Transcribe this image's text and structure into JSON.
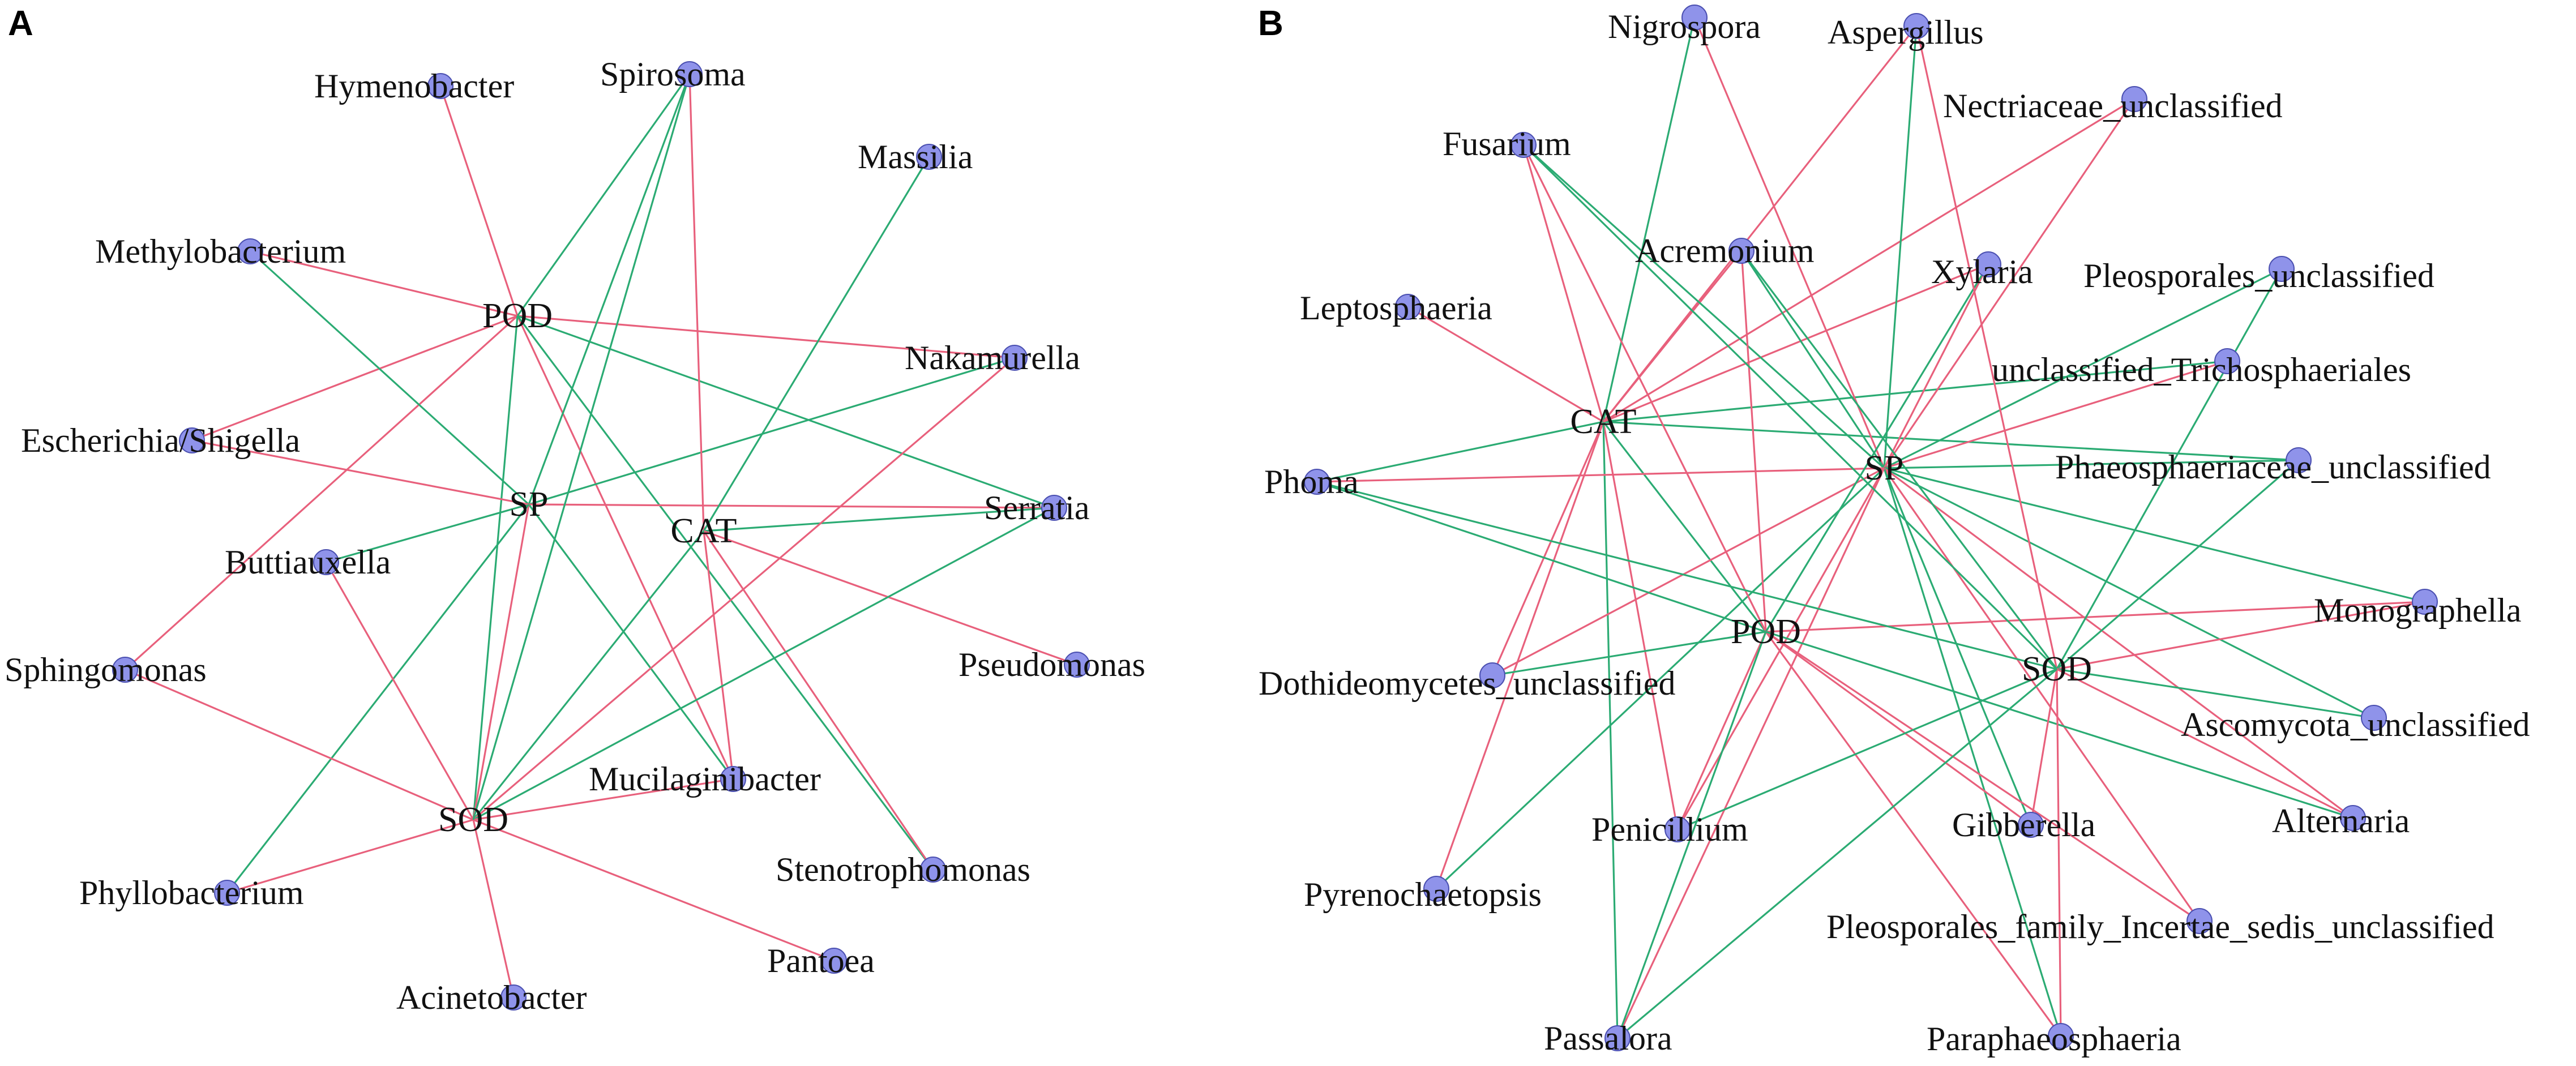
{
  "colors": {
    "positive_edge": "#e8607c",
    "negative_edge": "#2bab73",
    "node_fill": "#8f93ea",
    "node_stroke": "#4a4fb0",
    "text": "#111111"
  },
  "panels": [
    {
      "letter": "A",
      "hubs": [
        "POD",
        "SP",
        "CAT",
        "SOD"
      ],
      "nodes": [
        "Hymenobacter",
        "Spirosoma",
        "Massilia",
        "Methylobacterium",
        "Nakamurella",
        "Escherichia/Shigella",
        "Serratia",
        "Buttiauxella",
        "Pseudomonas",
        "Sphingomonas",
        "Mucilaginibacter",
        "Stenotrophomonas",
        "Phyllobacterium",
        "Pantoea",
        "Acinetobacter"
      ],
      "edges": [
        {
          "from": "POD",
          "to": "Hymenobacter",
          "sign": "positive"
        },
        {
          "from": "POD",
          "to": "Methylobacterium",
          "sign": "positive"
        },
        {
          "from": "POD",
          "to": "Nakamurella",
          "sign": "positive"
        },
        {
          "from": "POD",
          "to": "Serratia",
          "sign": "negative"
        },
        {
          "from": "POD",
          "to": "Spirosoma",
          "sign": "negative"
        },
        {
          "from": "POD",
          "to": "Mucilaginibacter",
          "sign": "positive"
        },
        {
          "from": "POD",
          "to": "Escherichia/Shigella",
          "sign": "positive"
        },
        {
          "from": "POD",
          "to": "Sphingomonas",
          "sign": "positive"
        },
        {
          "from": "POD",
          "to": "Stenotrophomonas",
          "sign": "negative"
        },
        {
          "from": "POD",
          "to": "SOD",
          "sign": "negative"
        },
        {
          "from": "SP",
          "to": "Spirosoma",
          "sign": "negative"
        },
        {
          "from": "SP",
          "to": "Methylobacterium",
          "sign": "negative"
        },
        {
          "from": "SP",
          "to": "Nakamurella",
          "sign": "negative"
        },
        {
          "from": "SP",
          "to": "Buttiauxella",
          "sign": "negative"
        },
        {
          "from": "SP",
          "to": "Escherichia/Shigella",
          "sign": "positive"
        },
        {
          "from": "SP",
          "to": "Serratia",
          "sign": "positive"
        },
        {
          "from": "SP",
          "to": "Mucilaginibacter",
          "sign": "negative"
        },
        {
          "from": "SP",
          "to": "SOD",
          "sign": "positive"
        },
        {
          "from": "SP",
          "to": "Phyllobacterium",
          "sign": "negative"
        },
        {
          "from": "CAT",
          "to": "Spirosoma",
          "sign": "positive"
        },
        {
          "from": "CAT",
          "to": "Massilia",
          "sign": "negative"
        },
        {
          "from": "CAT",
          "to": "Serratia",
          "sign": "negative"
        },
        {
          "from": "CAT",
          "to": "Pseudomonas",
          "sign": "positive"
        },
        {
          "from": "CAT",
          "to": "Mucilaginibacter",
          "sign": "positive"
        },
        {
          "from": "CAT",
          "to": "Stenotrophomonas",
          "sign": "positive"
        },
        {
          "from": "CAT",
          "to": "SOD",
          "sign": "negative"
        },
        {
          "from": "SOD",
          "to": "Nakamurella",
          "sign": "positive"
        },
        {
          "from": "SOD",
          "to": "Serratia",
          "sign": "negative"
        },
        {
          "from": "SOD",
          "to": "Buttiauxella",
          "sign": "positive"
        },
        {
          "from": "SOD",
          "to": "Sphingomonas",
          "sign": "positive"
        },
        {
          "from": "SOD",
          "to": "Phyllobacterium",
          "sign": "positive"
        },
        {
          "from": "SOD",
          "to": "Pantoea",
          "sign": "positive"
        },
        {
          "from": "SOD",
          "to": "Acinetobacter",
          "sign": "positive"
        },
        {
          "from": "SOD",
          "to": "Mucilaginibacter",
          "sign": "positive"
        },
        {
          "from": "SOD",
          "to": "Spirosoma",
          "sign": "negative"
        }
      ]
    },
    {
      "letter": "B",
      "hubs": [
        "CAT",
        "SP",
        "POD",
        "SOD"
      ],
      "nodes": [
        "Nigrospora",
        "Aspergillus",
        "Nectriaceae_unclassified",
        "Fusarium",
        "Acremonium",
        "Xylaria",
        "Pleosporales_unclassified",
        "Leptosphaeria",
        "unclassified_Trichosphaeriales",
        "Phaeosphaeriaceae_unclassified",
        "Phoma",
        "Monographella",
        "Dothideomycetes_unclassified",
        "Ascomycota_unclassified",
        "Alternaria",
        "Penicillium",
        "Gibberella",
        "Pyrenochaetopsis",
        "Pleosporales_family_Incertae_sedis_unclassified",
        "Passalora",
        "Paraphaeosphaeria"
      ],
      "edges": [
        {
          "from": "CAT",
          "to": "Fusarium",
          "sign": "positive"
        },
        {
          "from": "CAT",
          "to": "Nigrospora",
          "sign": "negative"
        },
        {
          "from": "CAT",
          "to": "Aspergillus",
          "sign": "positive"
        },
        {
          "from": "CAT",
          "to": "Nectriaceae_unclassified",
          "sign": "positive"
        },
        {
          "from": "CAT",
          "to": "Acremonium",
          "sign": "positive"
        },
        {
          "from": "CAT",
          "to": "Leptosphaeria",
          "sign": "positive"
        },
        {
          "from": "CAT",
          "to": "Phoma",
          "sign": "negative"
        },
        {
          "from": "CAT",
          "to": "unclassified_Trichosphaeriales",
          "sign": "negative"
        },
        {
          "from": "CAT",
          "to": "Phaeosphaeriaceae_unclassified",
          "sign": "negative"
        },
        {
          "from": "CAT",
          "to": "Dothideomycetes_unclassified",
          "sign": "positive"
        },
        {
          "from": "CAT",
          "to": "Pyrenochaetopsis",
          "sign": "positive"
        },
        {
          "from": "CAT",
          "to": "Penicillium",
          "sign": "positive"
        },
        {
          "from": "CAT",
          "to": "Passalora",
          "sign": "negative"
        },
        {
          "from": "CAT",
          "to": "POD",
          "sign": "negative"
        },
        {
          "from": "CAT",
          "to": "Xylaria",
          "sign": "positive"
        },
        {
          "from": "SP",
          "to": "Fusarium",
          "sign": "negative"
        },
        {
          "from": "SP",
          "to": "Nigrospora",
          "sign": "positive"
        },
        {
          "from": "SP",
          "to": "Aspergillus",
          "sign": "negative"
        },
        {
          "from": "SP",
          "to": "Nectriaceae_unclassified",
          "sign": "positive"
        },
        {
          "from": "SP",
          "to": "Acremonium",
          "sign": "negative"
        },
        {
          "from": "SP",
          "to": "Xylaria",
          "sign": "positive"
        },
        {
          "from": "SP",
          "to": "Pleosporales_unclassified",
          "sign": "negative"
        },
        {
          "from": "SP",
          "to": "unclassified_Trichosphaeriales",
          "sign": "positive"
        },
        {
          "from": "SP",
          "to": "Phaeosphaeriaceae_unclassified",
          "sign": "negative"
        },
        {
          "from": "SP",
          "to": "Phoma",
          "sign": "positive"
        },
        {
          "from": "SP",
          "to": "Monographella",
          "sign": "negative"
        },
        {
          "from": "SP",
          "to": "Ascomycota_unclassified",
          "sign": "negative"
        },
        {
          "from": "SP",
          "to": "Alternaria",
          "sign": "positive"
        },
        {
          "from": "SP",
          "to": "Gibberella",
          "sign": "negative"
        },
        {
          "from": "SP",
          "to": "Pleosporales_family_Incertae_sedis_unclassified",
          "sign": "positive"
        },
        {
          "from": "SP",
          "to": "Paraphaeosphaeria",
          "sign": "negative"
        },
        {
          "from": "SP",
          "to": "Pyrenochaetopsis",
          "sign": "negative"
        },
        {
          "from": "SP",
          "to": "Penicillium",
          "sign": "positive"
        },
        {
          "from": "SP",
          "to": "Passalora",
          "sign": "positive"
        },
        {
          "from": "SP",
          "to": "Dothideomycetes_unclassified",
          "sign": "positive"
        },
        {
          "from": "POD",
          "to": "Fusarium",
          "sign": "positive"
        },
        {
          "from": "POD",
          "to": "Acremonium",
          "sign": "positive"
        },
        {
          "from": "POD",
          "to": "Xylaria",
          "sign": "negative"
        },
        {
          "from": "POD",
          "to": "Phoma",
          "sign": "negative"
        },
        {
          "from": "POD",
          "to": "Monographella",
          "sign": "positive"
        },
        {
          "from": "POD",
          "to": "Dothideomycetes_unclassified",
          "sign": "negative"
        },
        {
          "from": "POD",
          "to": "Penicillium",
          "sign": "positive"
        },
        {
          "from": "POD",
          "to": "Gibberella",
          "sign": "positive"
        },
        {
          "from": "POD",
          "to": "Pleosporales_family_Incertae_sedis_unclassified",
          "sign": "positive"
        },
        {
          "from": "POD",
          "to": "Paraphaeosphaeria",
          "sign": "positive"
        },
        {
          "from": "POD",
          "to": "Passalora",
          "sign": "negative"
        },
        {
          "from": "POD",
          "to": "Alternaria",
          "sign": "negative"
        },
        {
          "from": "SOD",
          "to": "Aspergillus",
          "sign": "positive"
        },
        {
          "from": "SOD",
          "to": "Fusarium",
          "sign": "negative"
        },
        {
          "from": "SOD",
          "to": "Acremonium",
          "sign": "negative"
        },
        {
          "from": "SOD",
          "to": "Pleosporales_unclassified",
          "sign": "negative"
        },
        {
          "from": "SOD",
          "to": "Phaeosphaeriaceae_unclassified",
          "sign": "negative"
        },
        {
          "from": "SOD",
          "to": "Monographella",
          "sign": "positive"
        },
        {
          "from": "SOD",
          "to": "Ascomycota_unclassified",
          "sign": "negative"
        },
        {
          "from": "SOD",
          "to": "Alternaria",
          "sign": "positive"
        },
        {
          "from": "SOD",
          "to": "Gibberella",
          "sign": "positive"
        },
        {
          "from": "SOD",
          "to": "Paraphaeosphaeria",
          "sign": "positive"
        },
        {
          "from": "SOD",
          "to": "Passalora",
          "sign": "negative"
        },
        {
          "from": "SOD",
          "to": "Penicillium",
          "sign": "negative"
        },
        {
          "from": "SOD",
          "to": "Phoma",
          "sign": "negative"
        }
      ]
    }
  ]
}
